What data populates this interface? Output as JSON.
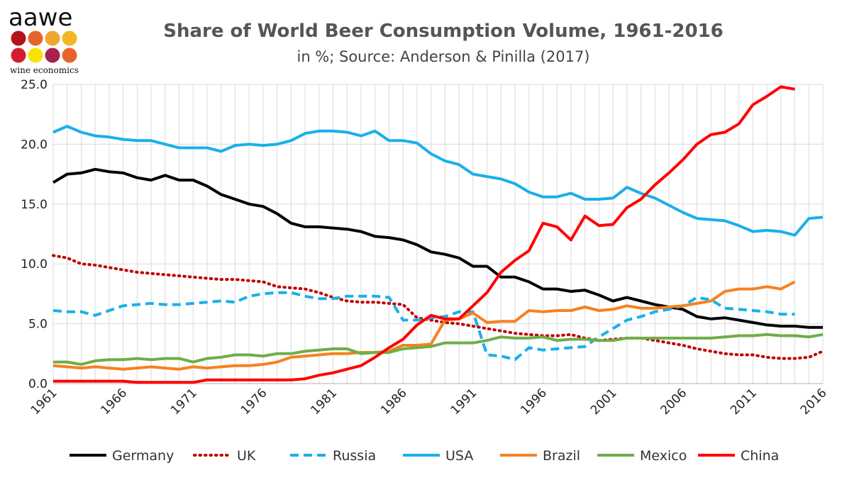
{
  "logo": {
    "wordmark": "aawe",
    "tagline": "wine economics",
    "dots": [
      "#b5121b",
      "#e8632b",
      "#f0a62e",
      "#f5b626",
      "#d51b2f",
      "#f6e400",
      "#a8204e",
      "#e8632b"
    ]
  },
  "chart_data": {
    "type": "line",
    "title": "Share of World Beer Consumption Volume, 1961-2016",
    "subtitle": "in %; Source: Anderson & Pinilla (2017)",
    "xlabel": "",
    "ylabel": "",
    "ylim": [
      0,
      25
    ],
    "xlim": [
      1961,
      2016
    ],
    "yticks": [
      "0.0",
      "5.0",
      "10.0",
      "15.0",
      "20.0",
      "25.0"
    ],
    "xticks": [
      "1961",
      "1966",
      "1971",
      "1976",
      "1981",
      "1986",
      "1991",
      "1996",
      "2001",
      "2006",
      "2011",
      "2016"
    ],
    "grid": true,
    "legend_position": "bottom",
    "series": [
      {
        "name": "Germany",
        "color": "#000000",
        "dash": "solid",
        "x": [
          1961,
          1962,
          1963,
          1964,
          1965,
          1966,
          1967,
          1968,
          1969,
          1970,
          1971,
          1972,
          1973,
          1974,
          1975,
          1976,
          1977,
          1978,
          1979,
          1980,
          1981,
          1982,
          1983,
          1984,
          1985,
          1986,
          1987,
          1988,
          1989,
          1990,
          1991,
          1992,
          1993,
          1994,
          1995,
          1996,
          1997,
          1998,
          1999,
          2000,
          2001,
          2002,
          2003,
          2004,
          2005,
          2006,
          2007,
          2008,
          2009,
          2010,
          2011,
          2012,
          2013,
          2014,
          2015,
          2016
        ],
        "values": [
          16.8,
          17.5,
          17.6,
          17.9,
          17.7,
          17.6,
          17.2,
          17.0,
          17.4,
          17.0,
          17.0,
          16.5,
          15.8,
          15.4,
          15.0,
          14.8,
          14.2,
          13.4,
          13.1,
          13.1,
          13.0,
          12.9,
          12.7,
          12.3,
          12.2,
          12.0,
          11.6,
          11.0,
          10.8,
          10.5,
          9.8,
          9.8,
          8.9,
          8.9,
          8.5,
          7.9,
          7.9,
          7.7,
          7.8,
          7.4,
          6.9,
          7.2,
          6.9,
          6.6,
          6.4,
          6.2,
          5.6,
          5.4,
          5.5,
          5.3,
          5.1,
          4.9,
          4.8,
          4.8,
          4.7,
          4.7
        ]
      },
      {
        "name": "UK",
        "color": "#c00000",
        "dash": "dotted",
        "x": [
          1961,
          1962,
          1963,
          1964,
          1965,
          1966,
          1967,
          1968,
          1969,
          1970,
          1971,
          1972,
          1973,
          1974,
          1975,
          1976,
          1977,
          1978,
          1979,
          1980,
          1981,
          1982,
          1983,
          1984,
          1985,
          1986,
          1987,
          1988,
          1989,
          1990,
          1991,
          1992,
          1993,
          1994,
          1995,
          1996,
          1997,
          1998,
          1999,
          2000,
          2001,
          2002,
          2003,
          2004,
          2005,
          2006,
          2007,
          2008,
          2009,
          2010,
          2011,
          2012,
          2013,
          2014,
          2015,
          2016
        ],
        "values": [
          10.7,
          10.5,
          10.0,
          9.9,
          9.7,
          9.5,
          9.3,
          9.2,
          9.1,
          9.0,
          8.9,
          8.8,
          8.7,
          8.7,
          8.6,
          8.5,
          8.1,
          8.0,
          7.9,
          7.6,
          7.2,
          6.9,
          6.8,
          6.8,
          6.7,
          6.6,
          5.5,
          5.3,
          5.1,
          5.0,
          4.8,
          4.6,
          4.4,
          4.2,
          4.1,
          4.0,
          4.0,
          4.1,
          3.8,
          3.6,
          3.7,
          3.8,
          3.8,
          3.6,
          3.4,
          3.2,
          2.9,
          2.7,
          2.5,
          2.4,
          2.4,
          2.2,
          2.1,
          2.1,
          2.2,
          2.7
        ]
      },
      {
        "name": "Russia",
        "color": "#1ab0ea",
        "dash": "dashed",
        "x": [
          1961,
          1962,
          1963,
          1964,
          1965,
          1966,
          1967,
          1968,
          1969,
          1970,
          1971,
          1972,
          1973,
          1974,
          1975,
          1976,
          1977,
          1978,
          1979,
          1980,
          1981,
          1982,
          1983,
          1984,
          1985,
          1986,
          1987,
          1988,
          1989,
          1990,
          1991,
          1992,
          1993,
          1994,
          1995,
          1996,
          1997,
          1998,
          1999,
          2000,
          2001,
          2002,
          2003,
          2004,
          2005,
          2006,
          2007,
          2008,
          2009,
          2010,
          2011,
          2012,
          2013,
          2014
        ],
        "values": [
          6.1,
          6.0,
          6.0,
          5.7,
          6.1,
          6.5,
          6.6,
          6.7,
          6.6,
          6.6,
          6.7,
          6.8,
          6.9,
          6.8,
          7.3,
          7.5,
          7.6,
          7.6,
          7.3,
          7.1,
          7.1,
          7.3,
          7.3,
          7.3,
          7.2,
          5.3,
          5.3,
          5.5,
          5.6,
          6.0,
          6.0,
          2.4,
          2.3,
          2.0,
          3.0,
          2.8,
          2.9,
          3.0,
          3.1,
          3.9,
          4.6,
          5.3,
          5.6,
          6.0,
          6.2,
          6.5,
          7.2,
          7.0,
          6.3,
          6.2,
          6.1,
          6.0,
          5.8,
          5.8
        ]
      },
      {
        "name": "USA",
        "color": "#1ab0ea",
        "dash": "solid",
        "x": [
          1961,
          1962,
          1963,
          1964,
          1965,
          1966,
          1967,
          1968,
          1969,
          1970,
          1971,
          1972,
          1973,
          1974,
          1975,
          1976,
          1977,
          1978,
          1979,
          1980,
          1981,
          1982,
          1983,
          1984,
          1985,
          1986,
          1987,
          1988,
          1989,
          1990,
          1991,
          1992,
          1993,
          1994,
          1995,
          1996,
          1997,
          1998,
          1999,
          2000,
          2001,
          2002,
          2003,
          2004,
          2005,
          2006,
          2007,
          2008,
          2009,
          2010,
          2011,
          2012,
          2013,
          2014,
          2015,
          2016
        ],
        "values": [
          21.0,
          21.5,
          21.0,
          20.7,
          20.6,
          20.4,
          20.3,
          20.3,
          20.0,
          19.7,
          19.7,
          19.7,
          19.4,
          19.9,
          20.0,
          19.9,
          20.0,
          20.3,
          20.9,
          21.1,
          21.1,
          21.0,
          20.7,
          21.1,
          20.3,
          20.3,
          20.1,
          19.2,
          18.6,
          18.3,
          17.5,
          17.3,
          17.1,
          16.7,
          16.0,
          15.6,
          15.6,
          15.9,
          15.4,
          15.4,
          15.5,
          16.4,
          15.9,
          15.5,
          14.9,
          14.3,
          13.8,
          13.7,
          13.6,
          13.2,
          12.7,
          12.8,
          12.7,
          12.4,
          13.8,
          13.9
        ]
      },
      {
        "name": "Brazil",
        "color": "#f5821f",
        "dash": "solid",
        "x": [
          1961,
          1962,
          1963,
          1964,
          1965,
          1966,
          1967,
          1968,
          1969,
          1970,
          1971,
          1972,
          1973,
          1974,
          1975,
          1976,
          1977,
          1978,
          1979,
          1980,
          1981,
          1982,
          1983,
          1984,
          1985,
          1986,
          1987,
          1988,
          1989,
          1990,
          1991,
          1992,
          1993,
          1994,
          1995,
          1996,
          1997,
          1998,
          1999,
          2000,
          2001,
          2002,
          2003,
          2004,
          2005,
          2006,
          2007,
          2008,
          2009,
          2010,
          2011,
          2012,
          2013,
          2014
        ],
        "values": [
          1.5,
          1.4,
          1.3,
          1.4,
          1.3,
          1.2,
          1.3,
          1.4,
          1.3,
          1.2,
          1.4,
          1.3,
          1.4,
          1.5,
          1.5,
          1.6,
          1.8,
          2.2,
          2.3,
          2.4,
          2.5,
          2.5,
          2.6,
          2.6,
          2.7,
          3.2,
          3.2,
          3.3,
          5.3,
          5.4,
          5.9,
          5.1,
          5.2,
          5.2,
          6.1,
          6.0,
          6.1,
          6.1,
          6.4,
          6.1,
          6.2,
          6.5,
          6.3,
          6.3,
          6.4,
          6.5,
          6.7,
          6.9,
          7.7,
          7.9,
          7.9,
          8.1,
          7.9,
          8.5
        ]
      },
      {
        "name": "Mexico",
        "color": "#70ad47",
        "dash": "solid",
        "x": [
          1961,
          1962,
          1963,
          1964,
          1965,
          1966,
          1967,
          1968,
          1969,
          1970,
          1971,
          1972,
          1973,
          1974,
          1975,
          1976,
          1977,
          1978,
          1979,
          1980,
          1981,
          1982,
          1983,
          1984,
          1985,
          1986,
          1987,
          1988,
          1989,
          1990,
          1991,
          1992,
          1993,
          1994,
          1995,
          1996,
          1997,
          1998,
          1999,
          2000,
          2001,
          2002,
          2003,
          2004,
          2005,
          2006,
          2007,
          2008,
          2009,
          2010,
          2011,
          2012,
          2013,
          2014,
          2015,
          2016
        ],
        "values": [
          1.8,
          1.8,
          1.6,
          1.9,
          2.0,
          2.0,
          2.1,
          2.0,
          2.1,
          2.1,
          1.8,
          2.1,
          2.2,
          2.4,
          2.4,
          2.3,
          2.5,
          2.5,
          2.7,
          2.8,
          2.9,
          2.9,
          2.5,
          2.6,
          2.6,
          2.9,
          3.0,
          3.1,
          3.4,
          3.4,
          3.4,
          3.6,
          3.9,
          3.8,
          3.8,
          3.9,
          3.6,
          3.7,
          3.7,
          3.6,
          3.6,
          3.8,
          3.8,
          3.8,
          3.8,
          3.8,
          3.8,
          3.8,
          3.9,
          4.0,
          4.0,
          4.1,
          4.0,
          4.0,
          3.9,
          4.1
        ]
      },
      {
        "name": "China",
        "color": "#ff0000",
        "dash": "solid",
        "x": [
          1961,
          1962,
          1963,
          1964,
          1965,
          1966,
          1967,
          1968,
          1969,
          1970,
          1971,
          1972,
          1973,
          1974,
          1975,
          1976,
          1977,
          1978,
          1979,
          1980,
          1981,
          1982,
          1983,
          1984,
          1985,
          1986,
          1987,
          1988,
          1989,
          1990,
          1991,
          1992,
          1993,
          1994,
          1995,
          1996,
          1997,
          1998,
          1999,
          2000,
          2001,
          2002,
          2003,
          2004,
          2005,
          2006,
          2007,
          2008,
          2009,
          2010,
          2011,
          2012,
          2013,
          2014
        ],
        "values": [
          0.2,
          0.2,
          0.2,
          0.2,
          0.2,
          0.2,
          0.1,
          0.1,
          0.1,
          0.1,
          0.1,
          0.3,
          0.3,
          0.3,
          0.3,
          0.3,
          0.3,
          0.3,
          0.4,
          0.7,
          0.9,
          1.2,
          1.5,
          2.2,
          3.0,
          3.7,
          4.9,
          5.7,
          5.4,
          5.4,
          6.5,
          7.6,
          9.3,
          10.3,
          11.1,
          13.4,
          13.1,
          12.0,
          14.0,
          13.2,
          13.3,
          14.7,
          15.4,
          16.6,
          17.6,
          18.7,
          20.0,
          20.8,
          21.0,
          21.7,
          23.3,
          24.0,
          24.8,
          24.6
        ]
      }
    ]
  }
}
